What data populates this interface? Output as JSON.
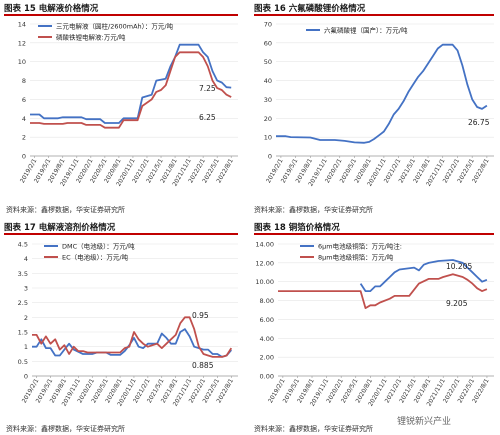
{
  "colors": {
    "red": "#c0504d",
    "blue": "#4472c4",
    "rule": "#c00000"
  },
  "months": [
    "2019/2/1",
    "2019/5/1",
    "2019/8/1",
    "2019/11/1",
    "2020/2/1",
    "2020/5/1",
    "2020/8/1",
    "2020/11/1",
    "2021/2/1",
    "2021/5/1",
    "2021/8/1",
    "2021/11/1",
    "2022/2/1",
    "2022/5/1",
    "2022/8/1"
  ],
  "source_text": "资料来源：鑫椤数据，华安证券研究所",
  "watermark": "锂锐新兴产业",
  "chart_data": [
    {
      "id": "c15",
      "caption": "图表 15  电解液价格情况",
      "type": "line",
      "ylim": [
        0,
        14
      ],
      "yticks": [
        0,
        2,
        4,
        6,
        8,
        10,
        12,
        14
      ],
      "x_start": "2019/1/1",
      "x_end": "2022/9/15",
      "legend_position": "top-left",
      "series": [
        {
          "name": "三元电解液（圆柱/2600mAh）：万元/吨",
          "color": "#4472c4",
          "points": [
            [
              "2019/1/1",
              4.4
            ],
            [
              "2019/3/1",
              4.4
            ],
            [
              "2019/4/1",
              4.0
            ],
            [
              "2019/7/1",
              4.0
            ],
            [
              "2019/8/1",
              4.1
            ],
            [
              "2019/12/1",
              4.1
            ],
            [
              "2020/1/1",
              3.9
            ],
            [
              "2020/4/1",
              3.9
            ],
            [
              "2020/5/1",
              3.5
            ],
            [
              "2020/8/1",
              3.5
            ],
            [
              "2020/9/1",
              4.0
            ],
            [
              "2020/12/1",
              4.0
            ],
            [
              "2021/1/1",
              6.2
            ],
            [
              "2021/3/1",
              6.5
            ],
            [
              "2021/4/1",
              8.0
            ],
            [
              "2021/6/1",
              8.2
            ],
            [
              "2021/7/1",
              9.5
            ],
            [
              "2021/8/1",
              10.5
            ],
            [
              "2021/9/1",
              11.8
            ],
            [
              "2022/1/1",
              11.8
            ],
            [
              "2022/2/1",
              11.0
            ],
            [
              "2022/3/1",
              10.5
            ],
            [
              "2022/4/1",
              9.0
            ],
            [
              "2022/5/1",
              8.0
            ],
            [
              "2022/6/1",
              7.8
            ],
            [
              "2022/7/1",
              7.3
            ],
            [
              "2022/8/1",
              7.25
            ]
          ],
          "end_label": "7.25"
        },
        {
          "name": "磷酸铁锂电解液:万元/吨",
          "color": "#c0504d",
          "points": [
            [
              "2019/1/1",
              3.5
            ],
            [
              "2019/3/1",
              3.5
            ],
            [
              "2019/4/1",
              3.4
            ],
            [
              "2019/8/1",
              3.4
            ],
            [
              "2019/9/1",
              3.5
            ],
            [
              "2019/12/1",
              3.5
            ],
            [
              "2020/1/1",
              3.3
            ],
            [
              "2020/4/1",
              3.3
            ],
            [
              "2020/5/1",
              3.0
            ],
            [
              "2020/8/1",
              3.0
            ],
            [
              "2020/9/1",
              3.8
            ],
            [
              "2020/12/1",
              3.8
            ],
            [
              "2021/1/1",
              5.3
            ],
            [
              "2021/3/1",
              6.0
            ],
            [
              "2021/4/1",
              6.8
            ],
            [
              "2021/5/1",
              7.0
            ],
            [
              "2021/6/1",
              7.5
            ],
            [
              "2021/7/1",
              9.0
            ],
            [
              "2021/8/1",
              10.5
            ],
            [
              "2021/9/1",
              11.0
            ],
            [
              "2022/1/1",
              11.0
            ],
            [
              "2022/2/1",
              10.5
            ],
            [
              "2022/3/1",
              9.5
            ],
            [
              "2022/4/1",
              8.0
            ],
            [
              "2022/5/1",
              7.2
            ],
            [
              "2022/6/1",
              7.0
            ],
            [
              "2022/7/1",
              6.5
            ],
            [
              "2022/8/1",
              6.25
            ]
          ],
          "end_label": "6.25"
        }
      ]
    },
    {
      "id": "c16",
      "caption": "图表 16  六氟磷酸锂价格情况",
      "type": "line",
      "ylim": [
        0,
        70
      ],
      "yticks": [
        0,
        10,
        20,
        30,
        40,
        50,
        60,
        70
      ],
      "x_start": "2019/1/1",
      "x_end": "2022/9/15",
      "legend_position": "top-center",
      "series": [
        {
          "name": "六氟磷酸锂（国产）：万元/吨",
          "color": "#4472c4",
          "points": [
            [
              "2019/1/1",
              10.5
            ],
            [
              "2019/3/1",
              10.5
            ],
            [
              "2019/4/1",
              10.0
            ],
            [
              "2019/8/1",
              9.8
            ],
            [
              "2019/10/1",
              8.5
            ],
            [
              "2020/1/1",
              8.5
            ],
            [
              "2020/3/1",
              8.0
            ],
            [
              "2020/5/1",
              7.2
            ],
            [
              "2020/7/1",
              7.0
            ],
            [
              "2020/8/1",
              7.5
            ],
            [
              "2020/9/1",
              9.0
            ],
            [
              "2020/10/1",
              11.0
            ],
            [
              "2020/11/1",
              13.0
            ],
            [
              "2020/12/1",
              17.0
            ],
            [
              "2021/1/1",
              22.0
            ],
            [
              "2021/2/1",
              25.0
            ],
            [
              "2021/3/1",
              29.0
            ],
            [
              "2021/4/1",
              34.0
            ],
            [
              "2021/5/1",
              38.0
            ],
            [
              "2021/6/1",
              42.0
            ],
            [
              "2021/7/1",
              45.0
            ],
            [
              "2021/8/1",
              49.0
            ],
            [
              "2021/9/1",
              53.0
            ],
            [
              "2021/10/1",
              57.0
            ],
            [
              "2021/11/1",
              59.0
            ],
            [
              "2022/1/1",
              59.0
            ],
            [
              "2022/2/1",
              56.0
            ],
            [
              "2022/3/1",
              48.0
            ],
            [
              "2022/4/1",
              38.0
            ],
            [
              "2022/5/1",
              30.0
            ],
            [
              "2022/6/1",
              26.0
            ],
            [
              "2022/7/1",
              25.0
            ],
            [
              "2022/8/1",
              26.75
            ]
          ],
          "end_label": "26.75"
        }
      ]
    },
    {
      "id": "c17",
      "caption": "图表 17  电解液溶剂价格情况",
      "type": "line",
      "ylim": [
        0,
        4.5
      ],
      "yticks": [
        0,
        0.5,
        1,
        1.5,
        2,
        2.5,
        3,
        3.5,
        4,
        4.5
      ],
      "x_start": "2019/1/1",
      "x_end": "2022/9/15",
      "legend_position": "top-center",
      "series": [
        {
          "name": "DMC（电池级）：万元/吨",
          "color": "#4472c4",
          "points": [
            [
              "2019/1/1",
              1.0
            ],
            [
              "2019/2/1",
              1.0
            ],
            [
              "2019/3/1",
              1.25
            ],
            [
              "2019/4/1",
              0.95
            ],
            [
              "2019/5/1",
              0.95
            ],
            [
              "2019/6/1",
              0.7
            ],
            [
              "2019/7/1",
              0.7
            ],
            [
              "2019/8/1",
              0.9
            ],
            [
              "2019/9/1",
              1.1
            ],
            [
              "2019/10/1",
              0.9
            ],
            [
              "2019/12/1",
              0.75
            ],
            [
              "2020/2/1",
              0.75
            ],
            [
              "2020/3/1",
              0.8
            ],
            [
              "2020/5/1",
              0.8
            ],
            [
              "2020/6/1",
              0.72
            ],
            [
              "2020/8/1",
              0.72
            ],
            [
              "2020/9/1",
              0.85
            ],
            [
              "2020/10/1",
              1.05
            ],
            [
              "2020/11/1",
              1.3
            ],
            [
              "2020/12/1",
              1.0
            ],
            [
              "2021/1/1",
              0.95
            ],
            [
              "2021/2/1",
              1.1
            ],
            [
              "2021/4/1",
              1.1
            ],
            [
              "2021/5/1",
              1.45
            ],
            [
              "2021/6/1",
              1.3
            ],
            [
              "2021/7/1",
              1.1
            ],
            [
              "2021/8/1",
              1.1
            ],
            [
              "2021/9/1",
              1.5
            ],
            [
              "2021/10/1",
              1.6
            ],
            [
              "2021/11/1",
              1.35
            ],
            [
              "2021/12/1",
              1.0
            ],
            [
              "2022/2/1",
              0.9
            ],
            [
              "2022/3/1",
              0.9
            ],
            [
              "2022/4/1",
              0.75
            ],
            [
              "2022/5/1",
              0.75
            ],
            [
              "2022/6/1",
              0.65
            ],
            [
              "2022/7/1",
              0.7
            ],
            [
              "2022/8/1",
              0.885
            ]
          ],
          "end_label": "0.885"
        },
        {
          "name": "EC（电池级）：万元/吨",
          "color": "#c0504d",
          "points": [
            [
              "2019/1/1",
              1.4
            ],
            [
              "2019/2/1",
              1.4
            ],
            [
              "2019/3/1",
              1.1
            ],
            [
              "2019/4/1",
              1.35
            ],
            [
              "2019/5/1",
              1.1
            ],
            [
              "2019/6/1",
              1.25
            ],
            [
              "2019/7/1",
              0.9
            ],
            [
              "2019/8/1",
              1.05
            ],
            [
              "2019/9/1",
              0.75
            ],
            [
              "2019/10/1",
              1.0
            ],
            [
              "2019/11/1",
              0.85
            ],
            [
              "2019/12/1",
              0.85
            ],
            [
              "2020/1/1",
              0.8
            ],
            [
              "2020/8/1",
              0.8
            ],
            [
              "2020/9/1",
              0.95
            ],
            [
              "2020/10/1",
              1.0
            ],
            [
              "2020/11/1",
              1.5
            ],
            [
              "2020/12/1",
              1.25
            ],
            [
              "2021/1/1",
              1.1
            ],
            [
              "2021/2/1",
              1.0
            ],
            [
              "2021/3/1",
              1.05
            ],
            [
              "2021/4/1",
              1.1
            ],
            [
              "2021/5/1",
              0.95
            ],
            [
              "2021/6/1",
              1.1
            ],
            [
              "2021/7/1",
              1.25
            ],
            [
              "2021/8/1",
              1.4
            ],
            [
              "2021/9/1",
              1.8
            ],
            [
              "2021/10/1",
              2.0
            ],
            [
              "2021/11/1",
              2.0
            ],
            [
              "2021/12/1",
              1.6
            ],
            [
              "2022/1/1",
              1.0
            ],
            [
              "2022/2/1",
              0.75
            ],
            [
              "2022/3/1",
              0.7
            ],
            [
              "2022/4/1",
              0.65
            ],
            [
              "2022/6/1",
              0.65
            ],
            [
              "2022/7/1",
              0.7
            ],
            [
              "2022/8/1",
              0.95
            ]
          ],
          "end_label": "0.95"
        }
      ]
    },
    {
      "id": "c18",
      "caption": "图表 18  铜箔价格情况",
      "type": "line",
      "ylim": [
        0,
        14
      ],
      "yticks": [
        0,
        2,
        4,
        6,
        8,
        10,
        12,
        14
      ],
      "yticklabels": [
        "0.00",
        "2.00",
        "4.00",
        "6.00",
        "8.00",
        "10.00",
        "12.00",
        "14.00"
      ],
      "x_start": "2019/1/1",
      "x_end": "2022/9/15",
      "legend_position": "top-center",
      "series": [
        {
          "name": "6μm电池级铜箔：万元/吨注:",
          "color": "#4472c4",
          "points": [
            [
              "2020/6/1",
              9.8
            ],
            [
              "2020/7/1",
              9.0
            ],
            [
              "2020/8/1",
              9.0
            ],
            [
              "2020/9/1",
              9.5
            ],
            [
              "2020/10/1",
              9.5
            ],
            [
              "2020/11/1",
              10.0
            ],
            [
              "2020/12/1",
              10.5
            ],
            [
              "2021/1/1",
              11.0
            ],
            [
              "2021/2/1",
              11.3
            ],
            [
              "2021/5/1",
              11.5
            ],
            [
              "2021/6/1",
              11.2
            ],
            [
              "2021/7/1",
              11.8
            ],
            [
              "2021/8/1",
              12.0
            ],
            [
              "2021/10/1",
              12.2
            ],
            [
              "2022/1/1",
              12.3
            ],
            [
              "2022/3/1",
              12.0
            ],
            [
              "2022/4/1",
              11.5
            ],
            [
              "2022/5/1",
              11.0
            ],
            [
              "2022/6/1",
              10.5
            ],
            [
              "2022/7/1",
              10.0
            ],
            [
              "2022/8/1",
              10.205
            ]
          ],
          "end_label": "10.205"
        },
        {
          "name": "8μm电池级铜箔：万元/吨",
          "color": "#c0504d",
          "points": [
            [
              "2019/1/1",
              9.0
            ],
            [
              "2020/6/1",
              9.0
            ],
            [
              "2020/7/1",
              7.2
            ],
            [
              "2020/8/1",
              7.5
            ],
            [
              "2020/9/1",
              7.5
            ],
            [
              "2020/10/1",
              7.8
            ],
            [
              "2020/12/1",
              8.2
            ],
            [
              "2021/1/1",
              8.5
            ],
            [
              "2021/4/1",
              8.5
            ],
            [
              "2021/6/1",
              9.8
            ],
            [
              "2021/8/1",
              10.3
            ],
            [
              "2021/10/1",
              10.3
            ],
            [
              "2021/11/1",
              10.5
            ],
            [
              "2022/1/1",
              10.8
            ],
            [
              "2022/3/1",
              10.5
            ],
            [
              "2022/4/1",
              10.2
            ],
            [
              "2022/5/1",
              9.8
            ],
            [
              "2022/6/1",
              9.3
            ],
            [
              "2022/7/1",
              9.0
            ],
            [
              "2022/8/1",
              9.205
            ]
          ],
          "end_label": "9.205"
        }
      ]
    }
  ]
}
